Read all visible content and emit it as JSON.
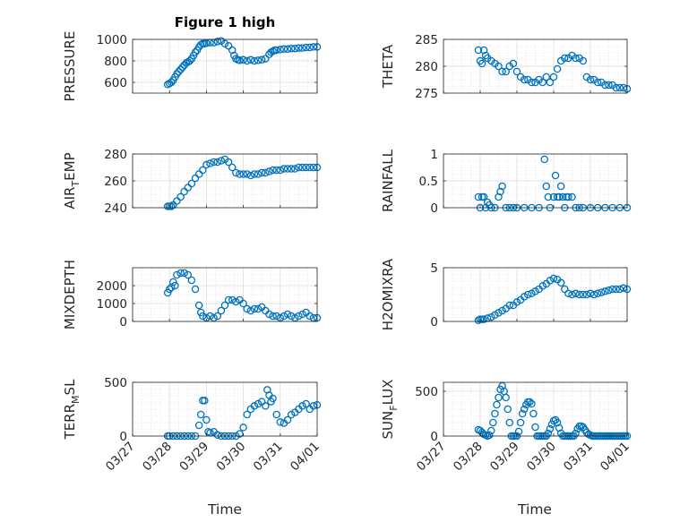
{
  "figure_title": "Figure 1 high",
  "chart_data": {
    "type": "scatter",
    "title": "Figure 1 high",
    "marker": "open-circle",
    "color": "#0072BD",
    "grid": true,
    "minor_grid": true,
    "x_tick_labels": [
      "03/27",
      "03/28",
      "03/29",
      "03/30",
      "03/31",
      "04/01"
    ],
    "x_range_days": [
      0,
      5
    ],
    "xlabel": "Time",
    "panels": [
      {
        "id": "pressure",
        "ylabel": "PRESSURE",
        "ylabel_sub": null,
        "ylim": [
          500,
          1000
        ],
        "yticks": [
          600,
          800,
          1000
        ],
        "x": [
          0.95,
          1.0,
          1.05,
          1.1,
          1.15,
          1.2,
          1.25,
          1.3,
          1.35,
          1.4,
          1.45,
          1.5,
          1.55,
          1.6,
          1.65,
          1.7,
          1.75,
          1.8,
          1.85,
          1.9,
          1.95,
          2.0,
          2.1,
          2.2,
          2.3,
          2.4,
          2.5,
          2.6,
          2.7,
          2.75,
          2.8,
          2.85,
          2.9,
          3.0,
          3.1,
          3.2,
          3.3,
          3.4,
          3.5,
          3.6,
          3.7,
          3.75,
          3.8,
          3.85,
          3.9,
          4.0,
          4.1,
          4.2,
          4.3,
          4.4,
          4.5,
          4.6,
          4.7,
          4.8,
          4.9,
          5.0
        ],
        "y": [
          580,
          590,
          600,
          620,
          650,
          680,
          700,
          720,
          740,
          760,
          780,
          790,
          800,
          820,
          850,
          880,
          900,
          930,
          950,
          960,
          960,
          965,
          970,
          970,
          980,
          985,
          960,
          940,
          900,
          850,
          820,
          810,
          805,
          810,
          800,
          810,
          800,
          805,
          810,
          820,
          860,
          880,
          890,
          900,
          900,
          905,
          910,
          910,
          915,
          915,
          920,
          920,
          925,
          925,
          930,
          930
        ]
      },
      {
        "id": "theta",
        "ylabel": "THETA",
        "ylabel_sub": null,
        "ylim": [
          275,
          285
        ],
        "yticks": [
          275,
          280,
          285
        ],
        "x": [
          0.95,
          1.0,
          1.05,
          1.1,
          1.15,
          1.2,
          1.3,
          1.4,
          1.5,
          1.6,
          1.7,
          1.8,
          1.9,
          2.0,
          2.1,
          2.2,
          2.3,
          2.4,
          2.5,
          2.6,
          2.7,
          2.8,
          2.9,
          3.0,
          3.1,
          3.2,
          3.3,
          3.4,
          3.5,
          3.6,
          3.7,
          3.8,
          3.9,
          4.0,
          4.1,
          4.2,
          4.3,
          4.4,
          4.5,
          4.6,
          4.7,
          4.8,
          4.9,
          5.0
        ],
        "y": [
          283,
          281,
          280.5,
          283,
          282,
          281.5,
          281,
          280.5,
          280,
          279,
          279,
          280,
          280.5,
          279,
          278,
          277.5,
          277.5,
          277,
          277,
          277.5,
          277,
          278,
          277,
          278,
          279.5,
          281,
          281.5,
          281.5,
          282,
          281.5,
          281.5,
          281,
          278,
          277.5,
          277.5,
          277,
          277,
          276.5,
          276.5,
          276.5,
          276,
          276,
          276,
          275.8
        ]
      },
      {
        "id": "air_temp",
        "ylabel": "AIR",
        "ylabel_sub": "T",
        "ylabel_rest": "EMP",
        "ylim": [
          240,
          280
        ],
        "yticks": [
          240,
          260,
          280
        ],
        "x": [
          0.95,
          1.0,
          1.05,
          1.1,
          1.2,
          1.3,
          1.4,
          1.5,
          1.6,
          1.7,
          1.8,
          1.9,
          2.0,
          2.1,
          2.2,
          2.3,
          2.4,
          2.5,
          2.6,
          2.7,
          2.8,
          2.9,
          3.0,
          3.1,
          3.2,
          3.3,
          3.4,
          3.5,
          3.6,
          3.7,
          3.8,
          3.9,
          4.0,
          4.1,
          4.2,
          4.3,
          4.4,
          4.5,
          4.6,
          4.7,
          4.8,
          4.9,
          5.0
        ],
        "y": [
          241,
          241,
          241,
          242,
          245,
          248,
          252,
          255,
          258,
          262,
          265,
          268,
          272,
          273,
          274,
          274,
          275,
          276,
          274,
          270,
          266,
          265,
          265,
          265,
          264,
          265,
          265,
          266,
          266,
          267,
          268,
          268,
          268,
          269,
          269,
          269,
          269,
          270,
          270,
          270,
          270,
          270,
          270
        ]
      },
      {
        "id": "rainfall",
        "ylabel": "RAINFALL",
        "ylabel_sub": null,
        "ylim": [
          0,
          1
        ],
        "yticks": [
          0,
          0.5,
          1
        ],
        "x": [
          0.95,
          1.0,
          1.05,
          1.1,
          1.15,
          1.2,
          1.25,
          1.3,
          1.4,
          1.5,
          1.55,
          1.6,
          1.7,
          1.8,
          1.9,
          2.0,
          2.2,
          2.4,
          2.6,
          2.75,
          2.8,
          2.85,
          2.9,
          3.0,
          3.05,
          3.1,
          3.15,
          3.2,
          3.25,
          3.3,
          3.35,
          3.4,
          3.5,
          3.6,
          3.7,
          3.8,
          4.0,
          4.2,
          4.4,
          4.6,
          4.8,
          5.0
        ],
        "y": [
          0.2,
          0,
          0.2,
          0.2,
          0,
          0.1,
          0.05,
          0,
          0,
          0.2,
          0.3,
          0.4,
          0,
          0,
          0,
          0,
          0,
          0,
          0,
          0.9,
          0.4,
          0.2,
          0,
          0.2,
          0.6,
          0.2,
          0.2,
          0.4,
          0.2,
          0,
          0.2,
          0.2,
          0.2,
          0,
          0,
          0,
          0,
          0,
          0,
          0,
          0,
          0
        ]
      },
      {
        "id": "mixdepth",
        "ylabel": "MIXDEPTH",
        "ylabel_sub": null,
        "ylim": [
          0,
          3000
        ],
        "yticks": [
          0,
          1000,
          2000
        ],
        "x": [
          0.95,
          1.0,
          1.05,
          1.1,
          1.15,
          1.2,
          1.3,
          1.4,
          1.5,
          1.6,
          1.7,
          1.8,
          1.85,
          1.9,
          2.0,
          2.1,
          2.2,
          2.3,
          2.4,
          2.5,
          2.6,
          2.7,
          2.8,
          2.9,
          3.0,
          3.1,
          3.2,
          3.3,
          3.4,
          3.5,
          3.6,
          3.7,
          3.8,
          3.9,
          4.0,
          4.1,
          4.2,
          4.3,
          4.4,
          4.5,
          4.6,
          4.7,
          4.8,
          4.9,
          5.0
        ],
        "y": [
          1600,
          1800,
          1900,
          2200,
          2000,
          2600,
          2700,
          2700,
          2600,
          2300,
          1800,
          900,
          500,
          300,
          200,
          300,
          200,
          300,
          600,
          900,
          1200,
          1200,
          1100,
          1200,
          1000,
          700,
          600,
          700,
          700,
          800,
          600,
          400,
          300,
          300,
          200,
          300,
          400,
          300,
          200,
          300,
          400,
          500,
          300,
          200,
          200
        ]
      },
      {
        "id": "h2omixra",
        "ylabel": "H2OMIXRA",
        "ylabel_sub": null,
        "ylim": [
          0,
          5
        ],
        "yticks": [
          0,
          5
        ],
        "x": [
          0.95,
          1.0,
          1.05,
          1.1,
          1.2,
          1.3,
          1.4,
          1.5,
          1.6,
          1.7,
          1.8,
          1.9,
          2.0,
          2.1,
          2.2,
          2.3,
          2.4,
          2.5,
          2.6,
          2.7,
          2.8,
          2.9,
          3.0,
          3.1,
          3.2,
          3.3,
          3.4,
          3.5,
          3.6,
          3.7,
          3.8,
          3.9,
          4.0,
          4.1,
          4.2,
          4.3,
          4.4,
          4.5,
          4.6,
          4.7,
          4.8,
          4.9,
          5.0
        ],
        "y": [
          0.1,
          0.2,
          0.2,
          0.2,
          0.3,
          0.4,
          0.6,
          0.8,
          1.0,
          1.2,
          1.5,
          1.5,
          1.8,
          2.0,
          2.3,
          2.5,
          2.6,
          2.8,
          3.0,
          3.3,
          3.5,
          3.8,
          4.0,
          3.9,
          3.6,
          3.0,
          2.6,
          2.5,
          2.6,
          2.5,
          2.5,
          2.5,
          2.6,
          2.5,
          2.6,
          2.7,
          2.8,
          2.9,
          3.0,
          3.0,
          3.0,
          3.1,
          3.0
        ]
      },
      {
        "id": "terr_msl",
        "ylabel": "TERR",
        "ylabel_sub": "M",
        "ylabel_rest": "SL",
        "ylim": [
          0,
          500
        ],
        "yticks": [
          0,
          500
        ],
        "x": [
          0.95,
          1.0,
          1.1,
          1.2,
          1.3,
          1.4,
          1.5,
          1.6,
          1.7,
          1.8,
          1.85,
          1.9,
          1.95,
          2.0,
          2.05,
          2.1,
          2.2,
          2.3,
          2.4,
          2.5,
          2.6,
          2.7,
          2.8,
          2.9,
          3.0,
          3.1,
          3.2,
          3.3,
          3.4,
          3.5,
          3.6,
          3.65,
          3.7,
          3.75,
          3.8,
          3.9,
          4.0,
          4.1,
          4.2,
          4.3,
          4.4,
          4.5,
          4.6,
          4.7,
          4.8,
          4.9,
          5.0
        ],
        "y": [
          0,
          0,
          0,
          0,
          0,
          0,
          0,
          0,
          0,
          100,
          200,
          330,
          330,
          150,
          40,
          30,
          40,
          10,
          0,
          0,
          0,
          0,
          0,
          20,
          80,
          200,
          250,
          280,
          300,
          320,
          280,
          430,
          380,
          320,
          350,
          200,
          130,
          120,
          150,
          200,
          220,
          250,
          280,
          300,
          250,
          280,
          290
        ]
      },
      {
        "id": "sun_flux",
        "ylabel": "SUN",
        "ylabel_sub": "F",
        "ylabel_rest": "LUX",
        "ylim": [
          0,
          600
        ],
        "yticks": [
          0,
          500
        ],
        "x": [
          0.95,
          1.0,
          1.05,
          1.1,
          1.15,
          1.2,
          1.25,
          1.3,
          1.35,
          1.4,
          1.45,
          1.5,
          1.55,
          1.6,
          1.65,
          1.7,
          1.75,
          1.8,
          1.85,
          1.9,
          1.95,
          2.0,
          2.05,
          2.1,
          2.15,
          2.2,
          2.25,
          2.3,
          2.35,
          2.4,
          2.45,
          2.5,
          2.55,
          2.6,
          2.65,
          2.7,
          2.75,
          2.8,
          2.85,
          2.9,
          2.95,
          3.0,
          3.05,
          3.1,
          3.15,
          3.2,
          3.25,
          3.3,
          3.35,
          3.4,
          3.45,
          3.5,
          3.55,
          3.6,
          3.65,
          3.7,
          3.75,
          3.8,
          3.85,
          3.9,
          3.95,
          4.0,
          4.05,
          4.1,
          4.15,
          4.2,
          4.25,
          4.3,
          4.35,
          4.4,
          4.45,
          4.5,
          4.55,
          4.6,
          4.65,
          4.7,
          4.75,
          4.8,
          4.85,
          4.9,
          4.95,
          5.0
        ],
        "y": [
          70,
          60,
          40,
          20,
          10,
          0,
          10,
          60,
          150,
          250,
          350,
          430,
          520,
          560,
          500,
          430,
          300,
          150,
          0,
          0,
          0,
          0,
          50,
          150,
          250,
          300,
          350,
          380,
          380,
          360,
          250,
          100,
          0,
          0,
          0,
          0,
          0,
          0,
          30,
          80,
          130,
          170,
          180,
          150,
          90,
          30,
          0,
          0,
          0,
          0,
          0,
          0,
          0,
          30,
          80,
          110,
          110,
          100,
          70,
          40,
          20,
          10,
          0,
          0,
          0,
          0,
          0,
          0,
          0,
          0,
          0,
          0,
          0,
          0,
          0,
          0,
          0,
          0,
          0,
          0,
          0,
          0
        ]
      }
    ]
  }
}
